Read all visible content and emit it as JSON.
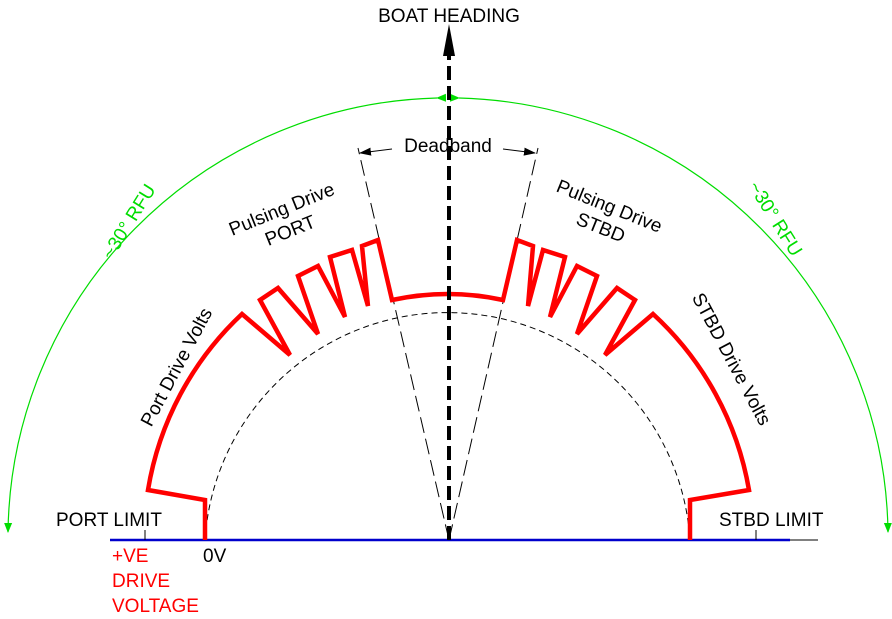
{
  "labels": {
    "boat_heading": "BOAT HEADING",
    "deadband": "Deadband",
    "rfu_left": "~30° RFU",
    "rfu_right": "~30° RFU",
    "pulsing_port_line1": "Pulsing Drive",
    "pulsing_port_line2": "PORT",
    "pulsing_stbd_line1": "Pulsing Drive",
    "pulsing_stbd_line2": "STBD",
    "port_drive_volts": "Port Drive Volts",
    "stbd_drive_volts": "STBD Drive Volts",
    "port_limit": "PORT LIMIT",
    "stbd_limit": "STBD LIMIT",
    "zero_v": "0V",
    "ve_line1": "+VE",
    "ve_line2": "DRIVE",
    "ve_line3": "VOLTAGE"
  },
  "colors": {
    "drive_trace": "#ff0000",
    "rfu_arc": "#00dd00",
    "baseline": "#0000cc",
    "ve_text": "#ff0000",
    "ink": "#000000"
  }
}
